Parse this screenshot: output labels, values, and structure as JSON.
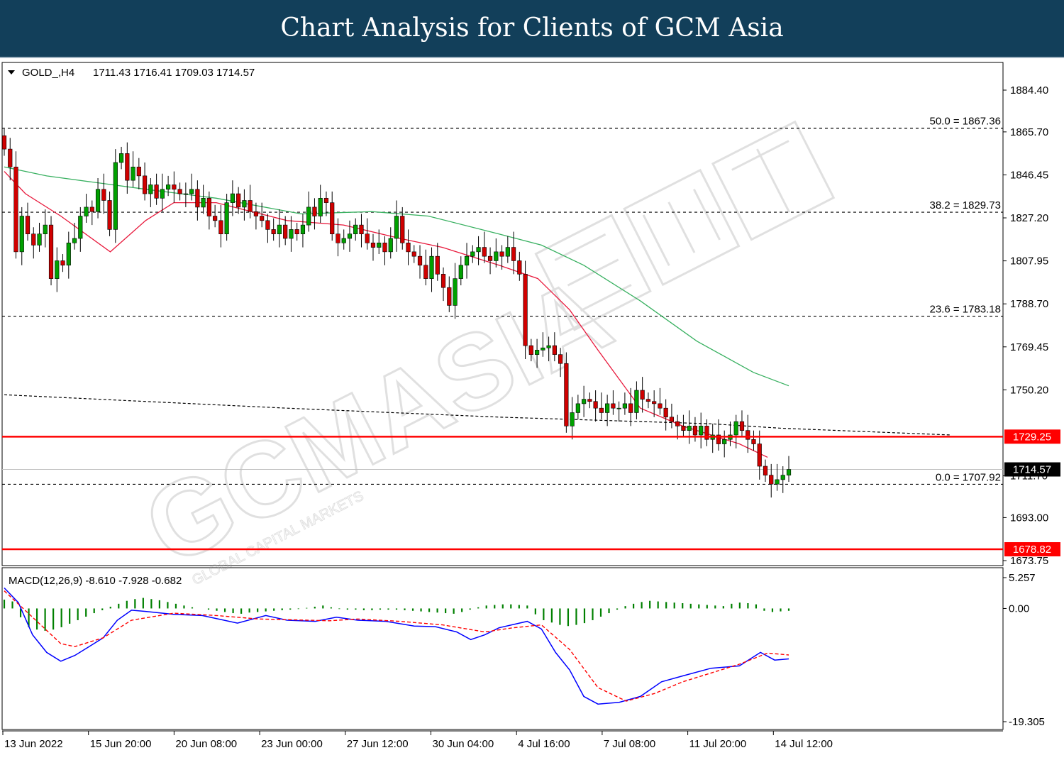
{
  "header": {
    "title": "Chart Analysis for Clients of GCM Asia"
  },
  "watermark": {
    "text": "GCMASIA",
    "sub": "GLOBAL CAPITAL MARKETS",
    "logo_name": "gcm-asia-watermark-logo"
  },
  "chart_data": [
    {
      "type": "candlestick",
      "symbol_label": "GOLD_,H4",
      "ohlc_label": "1711.43 1716.41 1709.03 1714.57",
      "yaxis_ticks": [
        "1884.40",
        "1865.70",
        "1846.45",
        "1827.20",
        "1807.95",
        "1788.70",
        "1769.45",
        "1750.20",
        "1711.70",
        "1693.00",
        "1673.75"
      ],
      "ylim": [
        1673.75,
        1884.4
      ],
      "xaxis_ticks": [
        "13 Jun 2022",
        "15 Jun 20:00",
        "20 Jun 08:00",
        "23 Jun 00:00",
        "27 Jun 12:00",
        "30 Jun 04:00",
        "4 Jul 16:00",
        "7 Jul 08:00",
        "11 Jul 20:00",
        "14 Jul 12:00"
      ],
      "fibonacci_levels": [
        {
          "label": "50.0 = 1867.36",
          "value": 1867.36
        },
        {
          "label": "38.2 = 1829.73",
          "value": 1829.73
        },
        {
          "label": "23.6 = 1783.18",
          "value": 1783.18
        },
        {
          "label": "0.0 = 1707.92",
          "value": 1707.92
        }
      ],
      "horizontal_levels": [
        {
          "label": "1729.25",
          "value": 1729.25,
          "color": "#ff0000"
        },
        {
          "label": "1678.82",
          "value": 1678.82,
          "color": "#ff0000"
        }
      ],
      "current_price": {
        "label": "1714.57",
        "value": 1714.57
      },
      "colors": {
        "bull": "#00a000",
        "bear": "#d00000",
        "ma_fast": "#e8193c",
        "ma_slow": "#38b060",
        "fib": "#000000"
      },
      "closes": [
        1858,
        1850,
        1812,
        1828,
        1820,
        1815,
        1820,
        1824,
        1800,
        1808,
        1806,
        1816,
        1818,
        1828,
        1832,
        1830,
        1840,
        1835,
        1822,
        1852,
        1856,
        1844,
        1850,
        1846,
        1838,
        1842,
        1836,
        1840,
        1842,
        1840,
        1838,
        1838,
        1840,
        1832,
        1836,
        1828,
        1826,
        1820,
        1834,
        1838,
        1832,
        1835,
        1830,
        1828,
        1826,
        1822,
        1820,
        1824,
        1818,
        1822,
        1820,
        1824,
        1832,
        1828,
        1836,
        1834,
        1820,
        1816,
        1818,
        1820,
        1824,
        1820,
        1816,
        1814,
        1816,
        1812,
        1818,
        1828,
        1816,
        1812,
        1810,
        1806,
        1800,
        1810,
        1802,
        1796,
        1788,
        1800,
        1806,
        1810,
        1812,
        1814,
        1810,
        1808,
        1812,
        1810,
        1814,
        1808,
        1802,
        1770,
        1766,
        1768,
        1769,
        1770,
        1766,
        1762,
        1734,
        1740,
        1744,
        1746,
        1745,
        1742,
        1740,
        1744,
        1742,
        1742,
        1744,
        1740,
        1750,
        1746,
        1745,
        1744,
        1742,
        1738,
        1736,
        1734,
        1732,
        1734,
        1730,
        1734,
        1728,
        1730,
        1726,
        1728,
        1730,
        1736,
        1732,
        1728,
        1726,
        1716,
        1712,
        1708,
        1710,
        1712,
        1714.57
      ],
      "ma_fast": [
        [
          0,
          1848
        ],
        [
          30,
          1838
        ],
        [
          80,
          1828
        ],
        [
          150,
          1812
        ],
        [
          200,
          1826
        ],
        [
          240,
          1834
        ],
        [
          300,
          1834
        ],
        [
          400,
          1826
        ],
        [
          480,
          1824
        ],
        [
          560,
          1818
        ],
        [
          620,
          1814
        ],
        [
          700,
          1806
        ],
        [
          755,
          1800
        ],
        [
          800,
          1786
        ],
        [
          840,
          1768
        ],
        [
          900,
          1742
        ],
        [
          960,
          1734
        ],
        [
          1040,
          1726
        ],
        [
          1080,
          1720
        ]
      ],
      "ma_slow": [
        [
          0,
          1850
        ],
        [
          60,
          1846
        ],
        [
          200,
          1840
        ],
        [
          300,
          1836
        ],
        [
          420,
          1829
        ],
        [
          520,
          1830
        ],
        [
          600,
          1828
        ],
        [
          700,
          1820
        ],
        [
          760,
          1815
        ],
        [
          820,
          1806
        ],
        [
          900,
          1790
        ],
        [
          980,
          1772
        ],
        [
          1060,
          1758
        ],
        [
          1110,
          1752
        ]
      ],
      "ma_slow_dashed": [
        [
          0,
          1748
        ],
        [
          400,
          1742
        ],
        [
          700,
          1738
        ],
        [
          1000,
          1735
        ],
        [
          1100,
          1733
        ],
        [
          1340,
          1730
        ]
      ]
    },
    {
      "type": "macd",
      "label": "MACD(12,26,9) -8.610 -7.928 -0.682",
      "yaxis_ticks": [
        "5.257",
        "0.00",
        "-19.305"
      ],
      "ylim": [
        -19.305,
        5.257
      ],
      "colors": {
        "histogram": "#008000",
        "macd_line": "#0000ff",
        "signal_line": "#ff0000"
      },
      "histogram": [
        1.5,
        1.2,
        -1.5,
        -3.2,
        -3.6,
        -3.8,
        -3.6,
        -3.2,
        -2.6,
        -2.0,
        -1.4,
        -0.8,
        -0.3,
        0.3,
        0.8,
        1.3,
        1.6,
        1.8,
        1.6,
        1.4,
        1.1,
        0.8,
        0.5,
        0.2,
        0.0,
        -0.2,
        -0.4,
        -0.6,
        -0.8,
        -0.9,
        -0.7,
        -0.6,
        -0.5,
        -0.4,
        -0.3,
        -0.2,
        -0.1,
        0.1,
        0.3,
        0.5,
        0.2,
        -0.1,
        -0.2,
        -0.2,
        -0.3,
        -0.3,
        -0.2,
        -0.2,
        -0.2,
        -0.3,
        -0.4,
        -0.5,
        -0.6,
        -0.7,
        -0.8,
        -0.9,
        -0.6,
        -0.2,
        0.2,
        0.5,
        0.6,
        0.7,
        0.7,
        0.6,
        0.5,
        -1.0,
        -2.0,
        -2.4,
        -2.8,
        -3.0,
        -2.8,
        -2.5,
        -2.0,
        -1.4,
        -0.8,
        -0.2,
        0.4,
        0.8,
        1.1,
        1.3,
        1.2,
        1.1,
        1.0,
        0.9,
        0.8,
        0.7,
        0.6,
        0.5,
        0.4,
        0.8,
        1.0,
        0.9,
        0.7,
        -0.4,
        -0.6,
        -0.5,
        -0.4
      ],
      "macd_line": [
        [
          0,
          3.5
        ],
        [
          20,
          1.0
        ],
        [
          40,
          -4.5
        ],
        [
          60,
          -7.5
        ],
        [
          80,
          -9.0
        ],
        [
          100,
          -8.0
        ],
        [
          120,
          -6.5
        ],
        [
          140,
          -5.0
        ],
        [
          160,
          -2.0
        ],
        [
          180,
          -0.3
        ],
        [
          200,
          -0.5
        ],
        [
          240,
          -1.0
        ],
        [
          280,
          -1.2
        ],
        [
          330,
          -2.5
        ],
        [
          370,
          -1.2
        ],
        [
          400,
          -2.0
        ],
        [
          440,
          -2.2
        ],
        [
          470,
          -1.5
        ],
        [
          500,
          -2.0
        ],
        [
          540,
          -2.2
        ],
        [
          580,
          -3.0
        ],
        [
          610,
          -3.1
        ],
        [
          640,
          -4.0
        ],
        [
          660,
          -5.3
        ],
        [
          680,
          -4.5
        ],
        [
          700,
          -3.3
        ],
        [
          740,
          -2.2
        ],
        [
          760,
          -3.5
        ],
        [
          780,
          -7.5
        ],
        [
          800,
          -10.5
        ],
        [
          820,
          -15.0
        ],
        [
          840,
          -16.3
        ],
        [
          870,
          -16.0
        ],
        [
          900,
          -15.0
        ],
        [
          930,
          -12.5
        ],
        [
          960,
          -11.5
        ],
        [
          1000,
          -10.2
        ],
        [
          1040,
          -9.8
        ],
        [
          1070,
          -7.5
        ],
        [
          1090,
          -8.8
        ],
        [
          1110,
          -8.6
        ]
      ],
      "signal_line": [
        [
          0,
          3.0
        ],
        [
          40,
          -1.5
        ],
        [
          80,
          -6.0
        ],
        [
          100,
          -6.5
        ],
        [
          140,
          -5.0
        ],
        [
          180,
          -2.0
        ],
        [
          240,
          -0.8
        ],
        [
          300,
          -1.2
        ],
        [
          360,
          -1.8
        ],
        [
          400,
          -1.9
        ],
        [
          460,
          -2.1
        ],
        [
          500,
          -1.8
        ],
        [
          560,
          -2.2
        ],
        [
          620,
          -2.8
        ],
        [
          680,
          -4.0
        ],
        [
          720,
          -3.3
        ],
        [
          760,
          -2.8
        ],
        [
          800,
          -7.0
        ],
        [
          840,
          -13.5
        ],
        [
          880,
          -15.8
        ],
        [
          920,
          -14.5
        ],
        [
          960,
          -12.5
        ],
        [
          1000,
          -11.0
        ],
        [
          1040,
          -9.5
        ],
        [
          1080,
          -7.6
        ],
        [
          1110,
          -7.93
        ]
      ]
    }
  ]
}
